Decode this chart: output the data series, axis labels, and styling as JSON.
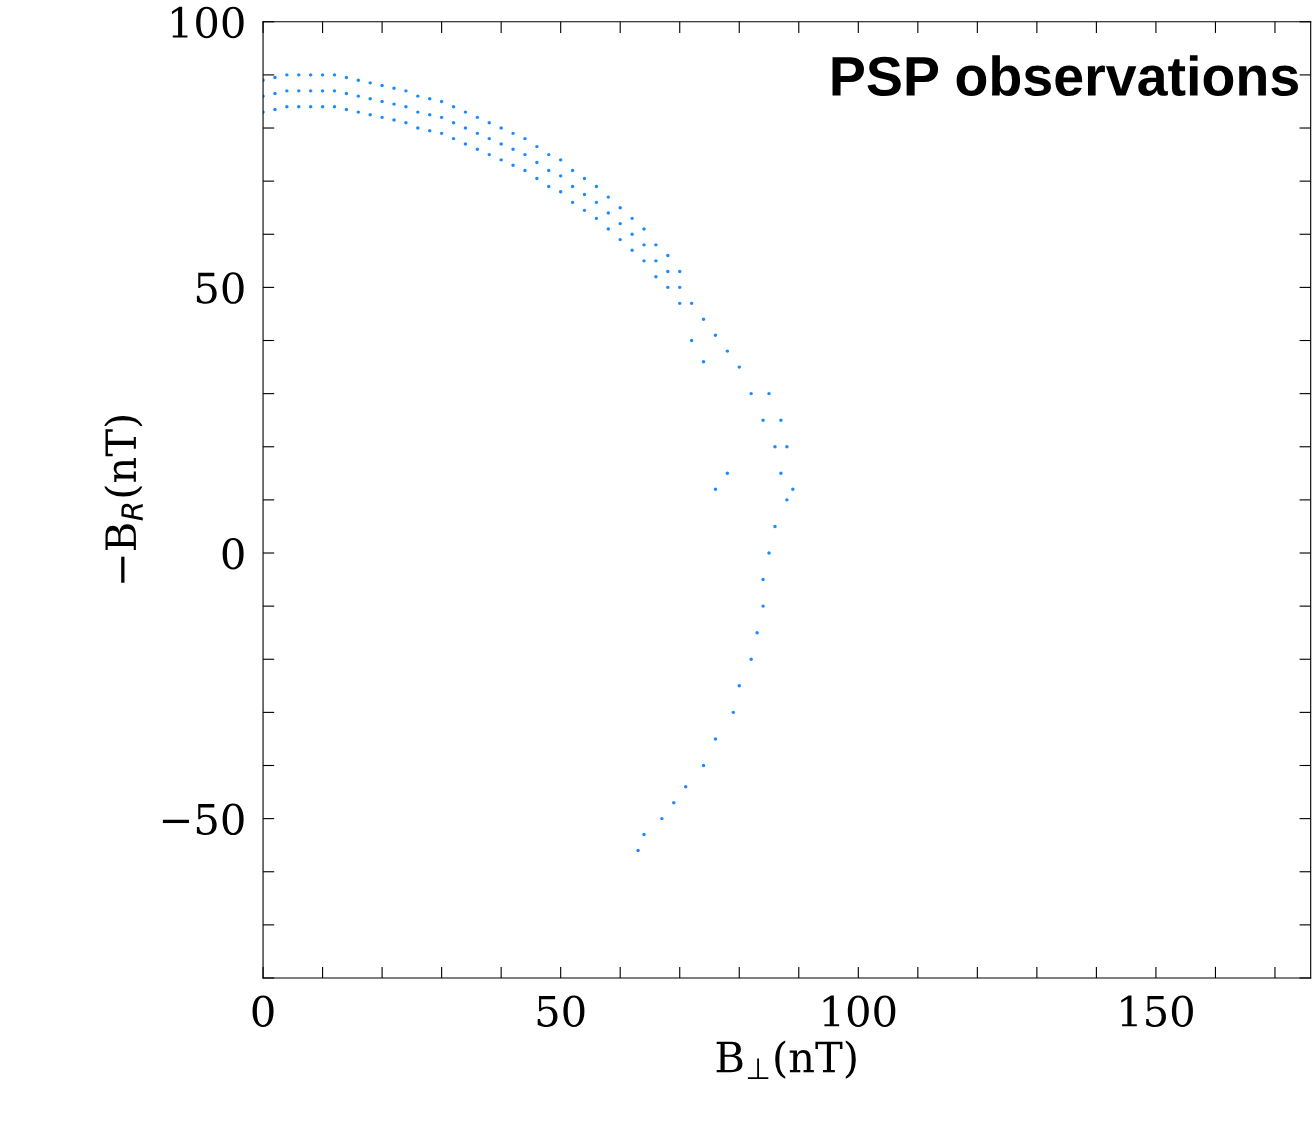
{
  "chart_data": {
    "type": "scatter",
    "xlabel": "B$_{⊥}$(nT)",
    "ylabel": "−B$_{R}$(nT)",
    "annotations": [
      "PSP observations"
    ],
    "xlim": [
      0,
      176
    ],
    "ylim": [
      -80,
      100
    ],
    "xticks": [
      0,
      {
        "value": 10,
        "label": null
      },
      {
        "value": 20,
        "label": null
      },
      {
        "value": 30,
        "label": null
      },
      {
        "value": 40,
        "label": null
      },
      50,
      {
        "value": 60,
        "label": null
      },
      {
        "value": 70,
        "label": null
      },
      {
        "value": 80,
        "label": null
      },
      {
        "value": 90,
        "label": null
      },
      100,
      {
        "value": 110,
        "label": null
      },
      {
        "value": 120,
        "label": null
      },
      {
        "value": 130,
        "label": null
      },
      {
        "value": 140,
        "label": null
      },
      150,
      {
        "value": 160,
        "label": null
      },
      {
        "value": 170,
        "label": null
      }
    ],
    "yticks": [
      {
        "value": -80,
        "label": null
      },
      {
        "value": -70,
        "label": null
      },
      {
        "value": -60,
        "label": null
      },
      {
        "value": -50,
        "label": "−50"
      },
      {
        "value": -40,
        "label": null
      },
      {
        "value": -30,
        "label": null
      },
      {
        "value": -20,
        "label": null
      },
      {
        "value": -10,
        "label": null
      },
      0,
      {
        "value": 10,
        "label": null
      },
      {
        "value": 20,
        "label": null
      },
      {
        "value": 30,
        "label": null
      },
      {
        "value": 40,
        "label": null
      },
      50,
      {
        "value": 60,
        "label": null
      },
      {
        "value": 70,
        "label": null
      },
      {
        "value": 80,
        "label": null
      },
      {
        "value": 90,
        "label": null
      },
      100
    ],
    "marker": "circle",
    "grid": false,
    "legend": false,
    "series": [
      {
        "color": "#1a8cff",
        "x": [
          0,
          2,
          4,
          6,
          8,
          10,
          12,
          14,
          16,
          18,
          20,
          22,
          24,
          26,
          28,
          30,
          32,
          34,
          36,
          38,
          40,
          42,
          44,
          46,
          48,
          50,
          52,
          54,
          56,
          58,
          60,
          62,
          64,
          66,
          68,
          70,
          0,
          2,
          4,
          6,
          8,
          10,
          12,
          14,
          16,
          18,
          20,
          22,
          24,
          26,
          28,
          30,
          32,
          34,
          36,
          38,
          40,
          42,
          44,
          46,
          48,
          50,
          52,
          54,
          56,
          58,
          60,
          62,
          64,
          66,
          68,
          70,
          0,
          2,
          4,
          6,
          8,
          10,
          12,
          14,
          16,
          18,
          20,
          22,
          24,
          26,
          28,
          30,
          32,
          34,
          36,
          38,
          40,
          42,
          44,
          46,
          48,
          50,
          52,
          54,
          56,
          58,
          60,
          62,
          64,
          66,
          68,
          70,
          72,
          74,
          76,
          78,
          80,
          82,
          84,
          86,
          87,
          88,
          86,
          85,
          84,
          84,
          83,
          82,
          80,
          79,
          76,
          74,
          71,
          69,
          67,
          64,
          63,
          85,
          87,
          88,
          89,
          76,
          78,
          72,
          74
        ],
        "values": [
          89,
          89.5,
          90,
          90,
          90,
          90,
          90,
          89.5,
          89,
          88.5,
          88,
          87.5,
          87,
          86,
          85.5,
          85,
          84,
          83,
          82,
          81,
          80,
          79,
          78,
          76.5,
          75,
          74,
          72,
          70.5,
          69,
          67,
          65,
          63,
          61,
          58,
          56,
          53,
          86,
          86.5,
          87,
          87,
          87,
          87,
          87,
          86.5,
          86,
          85.5,
          85,
          84.5,
          84,
          83,
          82.5,
          82,
          81,
          80,
          79,
          78,
          77,
          76,
          75,
          73.5,
          72,
          71,
          69,
          67.5,
          66,
          64,
          62,
          60,
          58,
          55,
          53,
          50,
          83,
          83.5,
          84,
          84,
          84,
          84,
          84,
          83.5,
          83,
          82.5,
          82,
          81.5,
          81,
          80,
          79.5,
          79,
          78,
          77,
          76,
          75,
          74,
          73,
          72,
          70.5,
          69,
          68,
          66,
          64.5,
          63,
          61,
          59,
          57,
          55,
          52,
          50,
          47,
          47,
          44,
          41,
          38,
          35,
          30,
          25,
          20,
          15,
          10,
          5,
          0,
          -5,
          -10,
          -15,
          -20,
          -25,
          -30,
          -35,
          -40,
          -44,
          -47,
          -50,
          -53,
          -56,
          30,
          25,
          20,
          12,
          12,
          15,
          40,
          36
        ]
      }
    ]
  }
}
